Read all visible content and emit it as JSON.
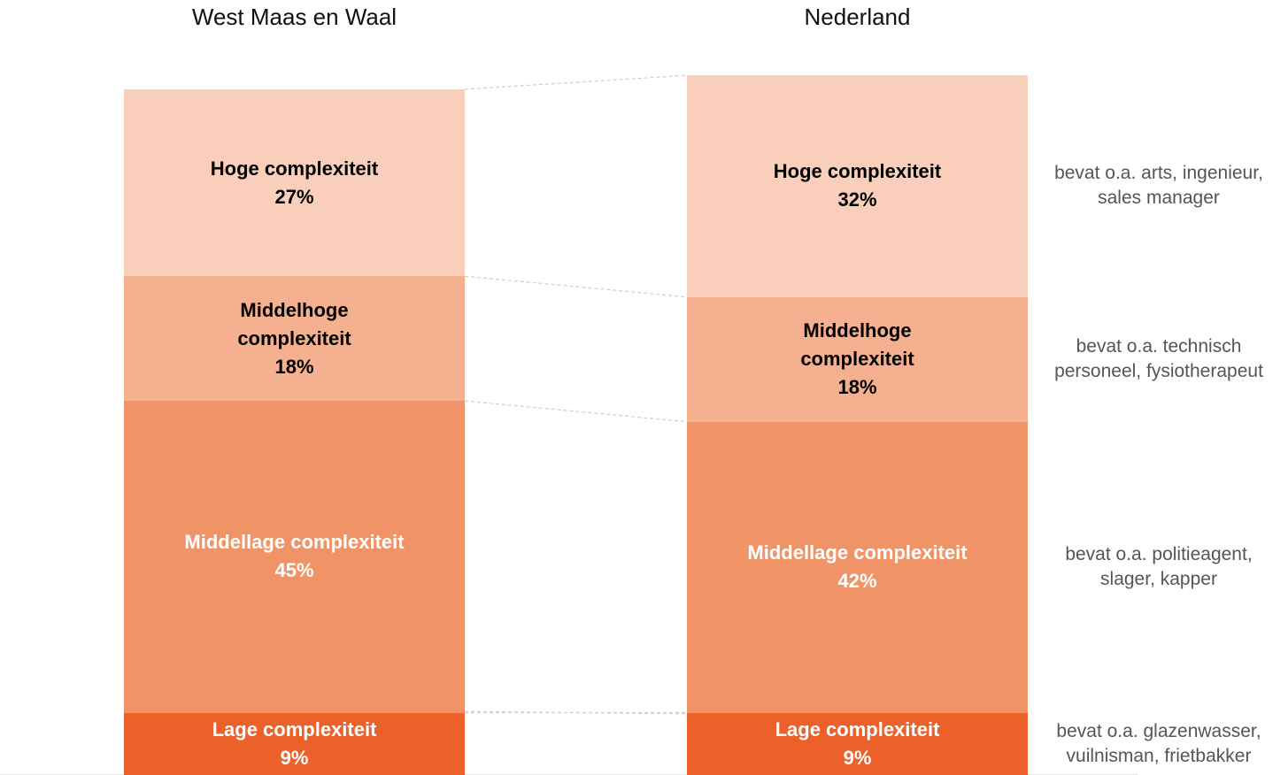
{
  "chart_data": {
    "type": "stacked_bar",
    "categories": [
      "West Maas en Waal",
      "Nederland"
    ],
    "ylim": [
      0,
      100
    ],
    "series": [
      {
        "name": "Lage complexiteit",
        "color": "#eb6129",
        "text_color": "#ffffff",
        "values": [
          9,
          9
        ],
        "value_labels": [
          "9%",
          "9%"
        ]
      },
      {
        "name": "Middellage complexiteit",
        "color": "#f09468",
        "text_color": "#ffffff",
        "values": [
          45,
          42
        ],
        "value_labels": [
          "45%",
          "42%"
        ]
      },
      {
        "name": "Middelhoge complexiteit",
        "color": "#f4b08f",
        "text_color": "#000000",
        "values": [
          18,
          18
        ],
        "value_labels": [
          "18%",
          "18%"
        ]
      },
      {
        "name": "Hoge complexiteit",
        "color": "#f9cfbc",
        "text_color": "#000000",
        "values": [
          27,
          32
        ],
        "value_labels": [
          "27%",
          "32%"
        ]
      }
    ],
    "annotations": [
      "bevat o.a. glazenwasser, vuilnisman, frietbakker",
      "bevat o.a. politieagent, slager, kapper",
      "bevat o.a. technisch personeel, fysiotherapeut",
      "bevat o.a. arts, ingenieur, sales manager"
    ]
  }
}
